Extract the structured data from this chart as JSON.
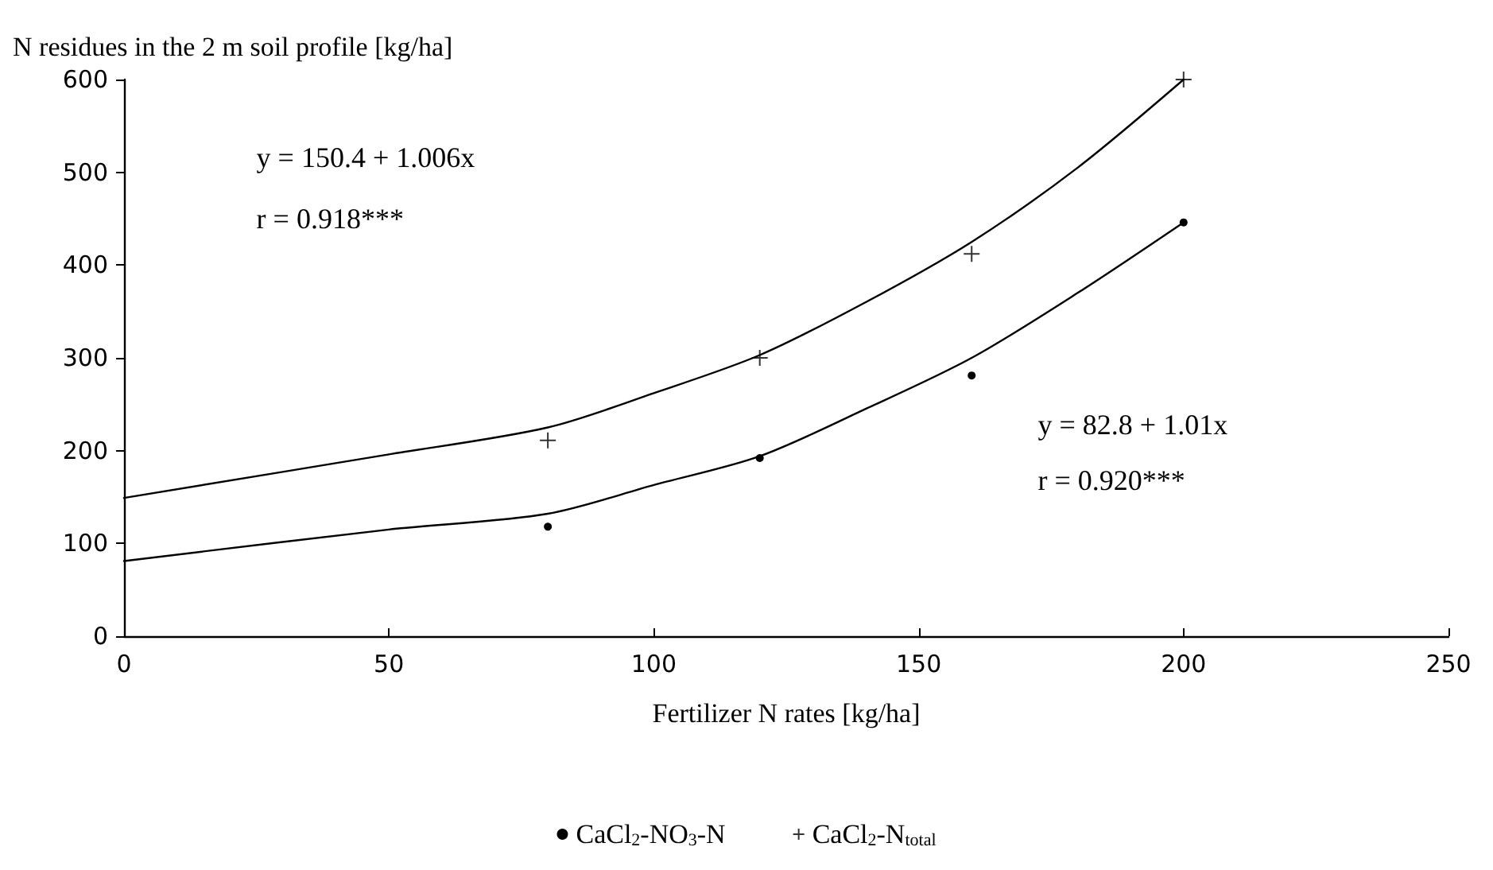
{
  "chart_data": {
    "type": "scatter",
    "ylabel": "N residues in the 2 m soil profile [kg/ha]",
    "xlabel": "Fertilizer N rates [kg/ha]",
    "xlim": [
      0,
      250
    ],
    "xticks": [
      0,
      50,
      100,
      150,
      200,
      250
    ],
    "ylim": [
      0,
      600
    ],
    "yticks": [
      0,
      100,
      200,
      300,
      400,
      500,
      600
    ],
    "grid": false,
    "legend": "bottom",
    "series": [
      {
        "name": "CaCl$_{2}$-NO$_{3}$-N",
        "marker": "circle",
        "color": "#000000",
        "x": [
          80,
          120,
          160,
          200
        ],
        "values": [
          118,
          192,
          281,
          446
        ]
      },
      {
        "name": "CaCl$_{2}$-N$_{total}$",
        "marker": "cross",
        "color": "#000000",
        "x": [
          80,
          120,
          160,
          200
        ],
        "values": [
          211,
          300,
          412,
          600
        ]
      },
      {
        "type": "line",
        "marker": "none",
        "color": "#000000",
        "x": [
          0,
          50,
          80,
          100,
          120,
          140,
          160,
          180,
          200
        ],
        "values": [
          81,
          115,
          132,
          163,
          194,
          245,
          300,
          370,
          446
        ]
      },
      {
        "type": "line",
        "marker": "none",
        "color": "#000000",
        "x": [
          0,
          50,
          80,
          100,
          120,
          140,
          160,
          180,
          200
        ],
        "values": [
          149,
          196,
          225,
          262,
          303,
          360,
          425,
          505,
          600
        ]
      }
    ],
    "annotations": [
      "y = 150.4 + 1.006x",
      "r = 0.918***",
      "y = 82.8 + 1.01x",
      "r = 0.920***"
    ]
  }
}
